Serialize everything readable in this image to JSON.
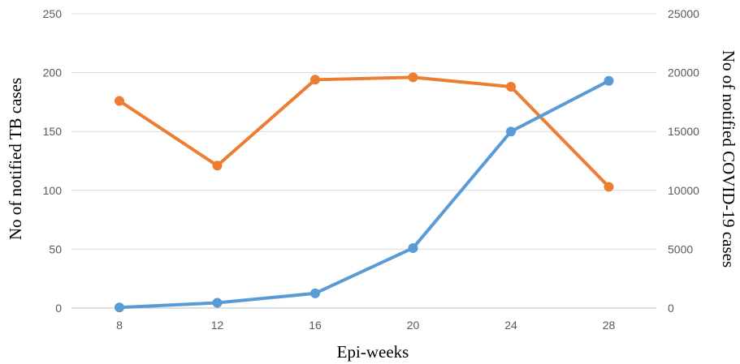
{
  "chart_data": {
    "type": "line",
    "x": [
      8,
      12,
      16,
      20,
      24,
      28
    ],
    "xlabel": "Epi-weeks",
    "ylabel_left": "No of notified TB cases",
    "ylabel_right": "No of notified COVID-19 cases",
    "ylim_left": [
      0,
      250
    ],
    "ylim_right": [
      0,
      25000
    ],
    "yticks_left": [
      "0",
      "50",
      "100",
      "150",
      "200",
      "250"
    ],
    "yticks_right": [
      "0",
      "5000",
      "10000",
      "15000",
      "20000",
      "25000"
    ],
    "grid": "horizontal",
    "legend": "none",
    "series": [
      {
        "axis": "left",
        "color": "#ED7D31",
        "values": [
          176,
          121,
          194,
          196,
          188,
          103
        ]
      },
      {
        "axis": "right",
        "color": "#5B9BD5",
        "values": [
          50,
          450,
          1250,
          5100,
          15000,
          19300
        ]
      }
    ]
  }
}
